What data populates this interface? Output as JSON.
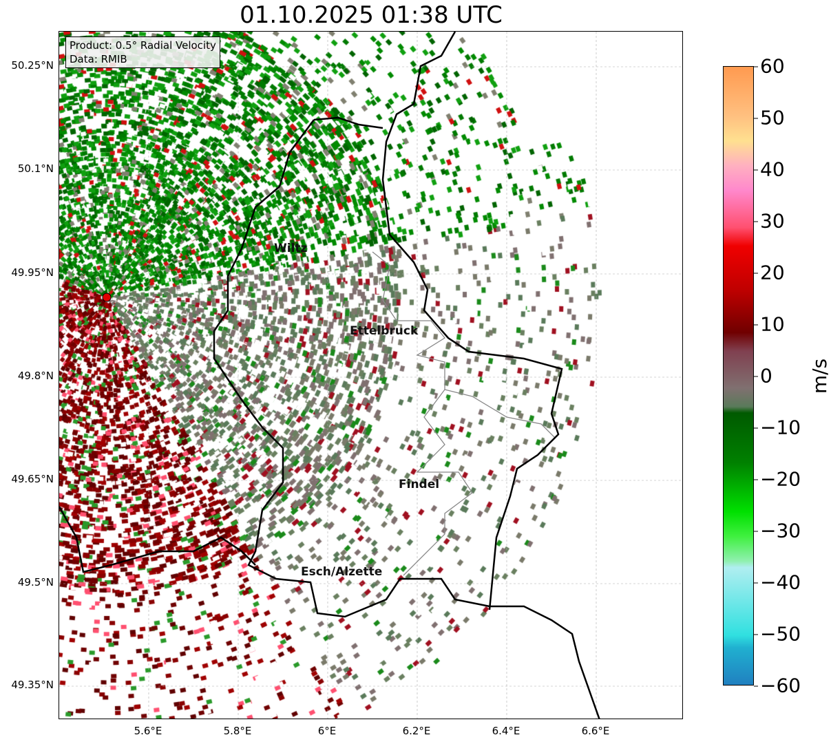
{
  "title": "01.10.2025 01:38 UTC",
  "info": {
    "product": "Product: 0.5° Radial Velocity",
    "data": "Data: RMIB"
  },
  "cities": [
    "Wiltz",
    "Ettelbruck",
    "Findel",
    "Esch/Alzette"
  ],
  "lat_ticks": [
    "50.25°N",
    "50.1°N",
    "49.95°N",
    "49.8°N",
    "49.65°N",
    "49.5°N",
    "49.35°N"
  ],
  "lon_ticks": [
    "5.6°E",
    "5.8°E",
    "6°E",
    "6.2°E",
    "6.4°E",
    "6.6°E"
  ],
  "colorbar": {
    "label": "m/s",
    "ticks": [
      "60",
      "50",
      "40",
      "30",
      "20",
      "10",
      "0",
      "−10",
      "−20",
      "−30",
      "−40",
      "−50",
      "−60"
    ],
    "range": [
      -60,
      60
    ]
  },
  "colors": {
    "radar_site": "#e00000"
  }
}
